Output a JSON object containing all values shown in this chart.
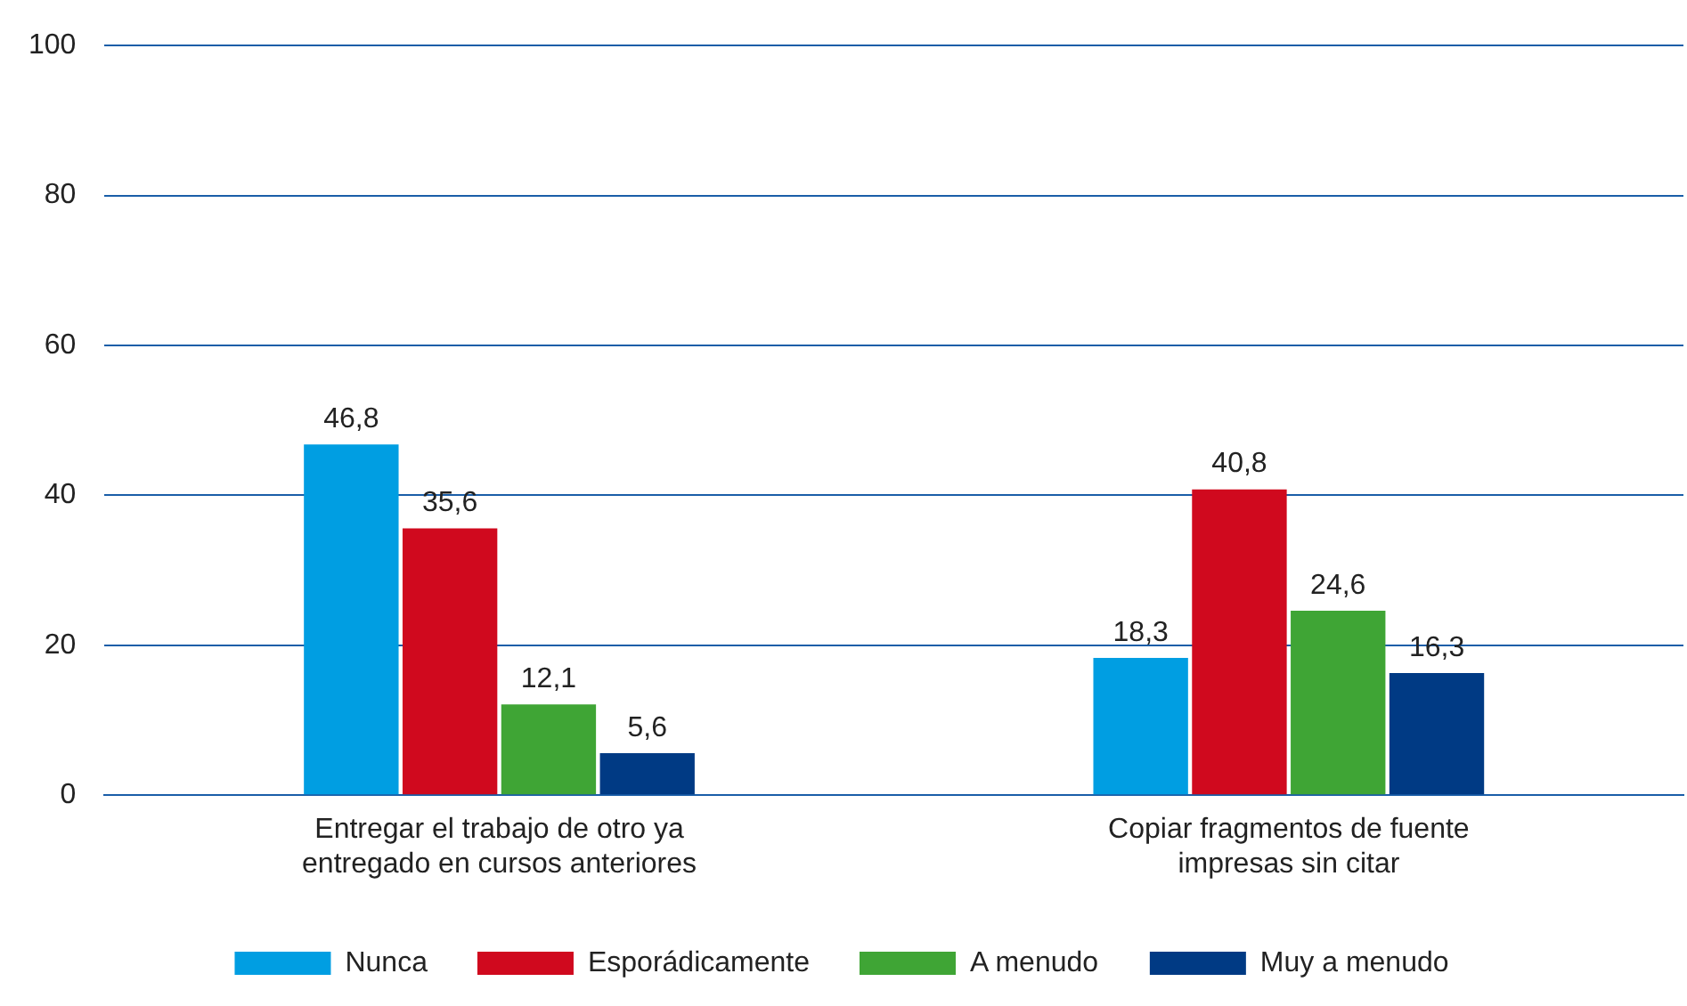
{
  "chart_data": {
    "type": "bar",
    "categories": [
      "Entregar el trabajo de otro ya entregado en cursos anteriores",
      "Copiar fragmentos de fuente impresas sin citar"
    ],
    "series": [
      {
        "name": "Nunca",
        "color": "#009ee2",
        "values": [
          46.8,
          18.3
        ],
        "value_labels": [
          "46,8",
          "18,3"
        ]
      },
      {
        "name": "Esporádicamente",
        "color": "#d0091e",
        "values": [
          35.6,
          40.8
        ],
        "value_labels": [
          "35,6",
          "40,8"
        ]
      },
      {
        "name": "A menudo",
        "color": "#3fa535",
        "values": [
          12.1,
          24.6
        ],
        "value_labels": [
          "12,1",
          "24,6"
        ]
      },
      {
        "name": "Muy a menudo",
        "color": "#003a84",
        "values": [
          5.6,
          16.3
        ],
        "value_labels": [
          "5,6",
          "16,3"
        ]
      }
    ],
    "ylim": [
      0,
      100
    ],
    "yticks": [
      0,
      20,
      40,
      60,
      80,
      100
    ],
    "grid": "y",
    "legend": "bottom"
  }
}
